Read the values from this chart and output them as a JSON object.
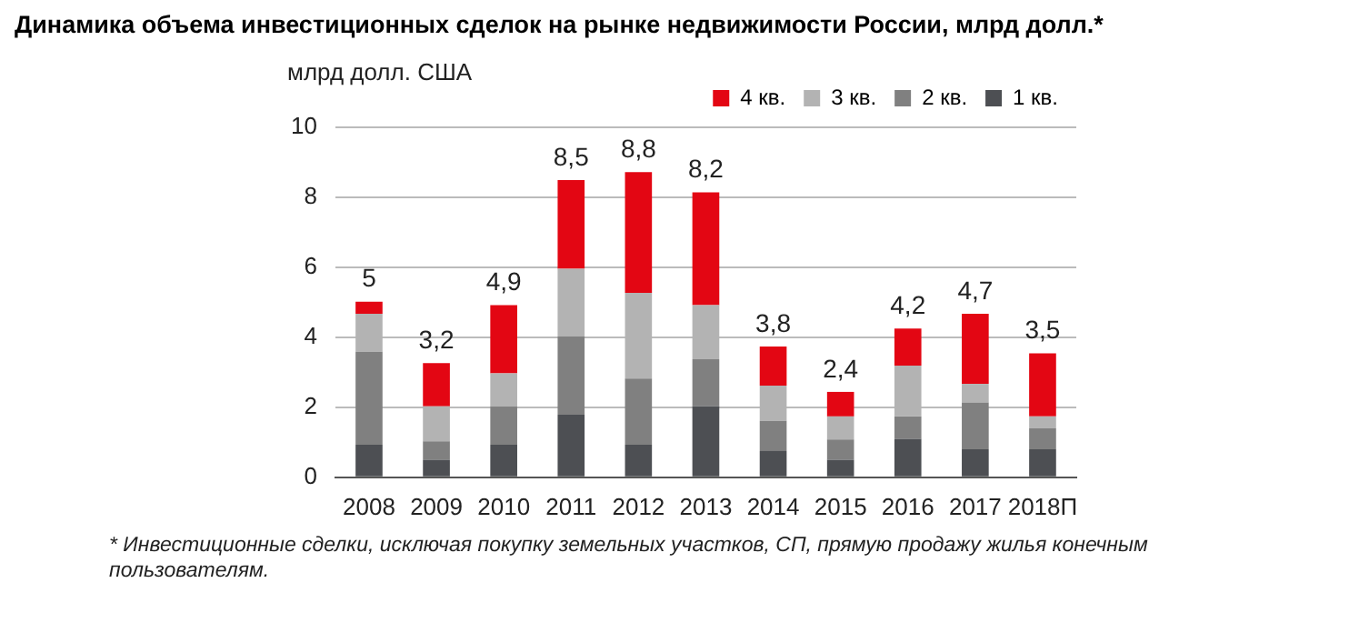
{
  "chart_data": {
    "type": "bar",
    "stacked": true,
    "title": "Динамика объема инвестиционных сделок на рынке недвижимости России, млрд долл.*",
    "ylabel": "млрд долл. США",
    "categories": [
      "2008",
      "2009",
      "2010",
      "2011",
      "2012",
      "2013",
      "2014",
      "2015",
      "2016",
      "2017",
      "2018П"
    ],
    "series": [
      {
        "name": "1 кв.",
        "color": "#4d4f53",
        "values": [
          0.93,
          0.5,
          0.93,
          1.79,
          0.93,
          2.03,
          0.75,
          0.5,
          1.1,
          0.8,
          0.8
        ]
      },
      {
        "name": "2 кв.",
        "color": "#808080",
        "values": [
          2.66,
          0.53,
          1.1,
          2.23,
          1.89,
          1.34,
          0.86,
          0.58,
          0.64,
          1.34,
          0.6
        ]
      },
      {
        "name": "3 кв.",
        "color": "#b3b3b3",
        "values": [
          1.08,
          1.0,
          0.94,
          1.94,
          2.45,
          1.55,
          1.01,
          0.66,
          1.45,
          0.53,
          0.34
        ]
      },
      {
        "name": "4 кв.",
        "color": "#e30613",
        "values": [
          0.35,
          1.23,
          1.95,
          2.53,
          3.45,
          3.22,
          1.12,
          0.7,
          1.06,
          2.0,
          1.8
        ]
      }
    ],
    "totals": [
      "5",
      "3,2",
      "4,9",
      "8,5",
      "8,8",
      "8,2",
      "3,8",
      "2,4",
      "4,2",
      "4,7",
      "3,5"
    ],
    "ylim": [
      0,
      10
    ],
    "yticks": [
      0,
      2,
      4,
      6,
      8,
      10
    ],
    "grid": "y",
    "legend": "top right",
    "annotations": [
      "* Инвестиционные сделки, исключая покупку земельных участков, СП, прямую продажу жилья конечным пользователям."
    ]
  }
}
